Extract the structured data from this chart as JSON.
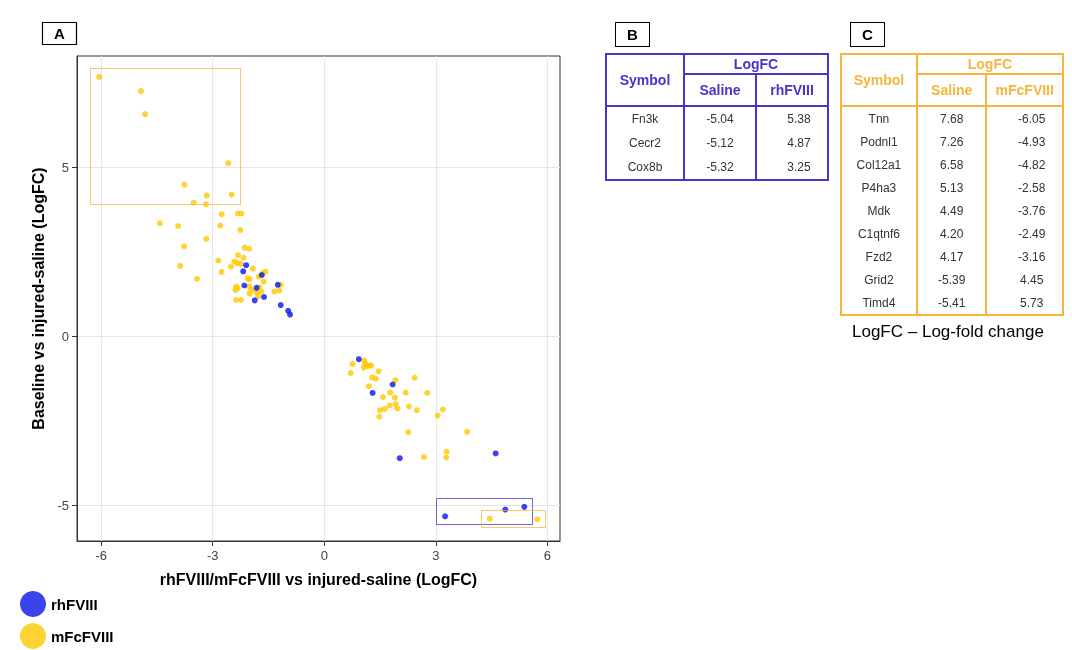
{
  "chart_data": [
    {
      "type": "scatter",
      "title": "A",
      "xlabel": "rhFVIII/mFcFVIII vs injured-saline (LogFC)",
      "ylabel": "Baseline vs injured-saline (LogFC)",
      "xlim": [
        -6.65,
        6.34
      ],
      "ylim": [
        -6.05,
        8.3
      ],
      "xticks": [
        -6,
        -3,
        0,
        3,
        6
      ],
      "yticks": [
        -5,
        0,
        5
      ],
      "grid": true,
      "legend": "bottom left",
      "marker": "circle",
      "series": [
        {
          "name": "rhFVIII",
          "color": "#0a14e6",
          "x": [
            -2.1,
            -2.18,
            -2.15,
            -1.82,
            -1.68,
            -1.25,
            -1.87,
            -1.62,
            -1.17,
            -0.97,
            -0.92,
            0.93,
            1.84,
            1.3,
            2.03,
            4.61,
            3.25,
            4.87,
            5.38
          ],
          "values": [
            2.11,
            1.93,
            1.51,
            1.44,
            1.82,
            1.53,
            1.07,
            1.17,
            0.93,
            0.76,
            0.65,
            -0.67,
            -1.42,
            -1.67,
            -3.6,
            -3.46,
            -5.32,
            -5.12,
            -5.04
          ]
        },
        {
          "name": "mFcFVIII",
          "color": "#ffc800",
          "x": [
            -6.05,
            -4.93,
            -4.82,
            -2.58,
            -3.76,
            -3.16,
            -2.49,
            -3.51,
            -3.18,
            -2.76,
            -2.32,
            -2.23,
            -4.42,
            -3.93,
            -2.8,
            -2.26,
            -3.17,
            -3.77,
            -2.14,
            -2.02,
            -2.32,
            -2.85,
            -2.17,
            -2.42,
            -2.34,
            -2.25,
            -2.51,
            -3.87,
            -2.76,
            -1.92,
            -3.42,
            -1.58,
            -1.66,
            -1.76,
            -2.06,
            -2.01,
            -1.63,
            -2.37,
            -2.33,
            -2.39,
            -2.01,
            -1.96,
            -1.75,
            -1.82,
            -1.69,
            -2.01,
            -1.34,
            -1.17,
            -1.21,
            -2.37,
            -2.24,
            -1.78,
            0.71,
            0.76,
            1.08,
            1.1,
            1.15,
            1.06,
            1.22,
            1.26,
            1.46,
            1.29,
            1.39,
            1.2,
            1.91,
            2.43,
            1.58,
            1.77,
            1.9,
            2.19,
            2.77,
            1.5,
            1.63,
            1.48,
            1.76,
            1.92,
            1.97,
            2.28,
            2.49,
            3.05,
            3.19,
            2.26,
            3.84,
            2.68,
            3.29,
            3.28,
            4.45,
            5.73
          ],
          "values": [
            7.68,
            7.26,
            6.58,
            5.13,
            4.49,
            4.17,
            4.2,
            3.96,
            3.91,
            3.62,
            3.64,
            3.64,
            3.35,
            3.27,
            3.28,
            3.15,
            2.89,
            2.67,
            2.63,
            2.6,
            2.41,
            2.25,
            2.33,
            2.22,
            2.17,
            2.15,
            2.07,
            2.09,
            1.91,
            2.01,
            1.71,
            1.92,
            1.87,
            1.77,
            1.72,
            1.7,
            1.63,
            1.48,
            1.43,
            1.38,
            1.48,
            1.38,
            1.46,
            1.31,
            1.33,
            1.27,
            1.33,
            1.53,
            1.36,
            1.08,
            1.08,
            1.19,
            -1.08,
            -0.81,
            -0.71,
            -0.81,
            -0.88,
            -0.92,
            -0.86,
            -0.86,
            -1.03,
            -1.21,
            -1.25,
            -1.47,
            -1.29,
            -1.22,
            -1.79,
            -1.66,
            -1.81,
            -1.66,
            -1.67,
            -2.18,
            -2.14,
            -2.37,
            -2.04,
            -2.0,
            -2.13,
            -2.07,
            -2.18,
            -2.34,
            -2.16,
            -2.83,
            -2.82,
            -3.57,
            -3.41,
            -3.58,
            -5.39,
            -5.41
          ]
        }
      ]
    },
    {
      "type": "other",
      "title": "B",
      "xlabel": "Symbol",
      "ylabel": "LogFC",
      "data_labels": true,
      "categories": [
        "Fn3k",
        "Cecr2",
        "Cox8b"
      ],
      "series": [
        {
          "name": "Saline",
          "color": "#4a34c8",
          "values": [
            -5.04,
            -5.12,
            -5.32
          ]
        },
        {
          "name": "rhFVIII",
          "color": "#4a34c8",
          "values": [
            5.38,
            4.87,
            3.25
          ]
        }
      ]
    },
    {
      "type": "other",
      "title": "C",
      "xlabel": "Symbol",
      "ylabel": "LogFC",
      "data_labels": true,
      "annotations": [
        "LogFC – Log-fold change"
      ],
      "categories": [
        "Tnn",
        "Podnl1",
        "Col12a1",
        "P4ha3",
        "Mdk",
        "C1qtnf6",
        "Fzd2",
        "Grid2",
        "Timd4"
      ],
      "series": [
        {
          "name": "Saline",
          "color": "#f5b53f",
          "values": [
            7.68,
            7.26,
            6.58,
            5.13,
            4.49,
            4.2,
            4.17,
            -5.39,
            -5.41
          ],
          "value_labels": [
            "7.68",
            "7.26",
            "6.58",
            "5.13",
            "4.49",
            "4.20",
            "4.17",
            "-5.39",
            "-5.41"
          ]
        },
        {
          "name": "mFcFVIII",
          "color": "#f5b53f",
          "values": [
            -6.05,
            -4.93,
            -4.82,
            -2.58,
            -3.76,
            -2.49,
            -3.16,
            4.45,
            5.73
          ]
        }
      ]
    }
  ]
}
